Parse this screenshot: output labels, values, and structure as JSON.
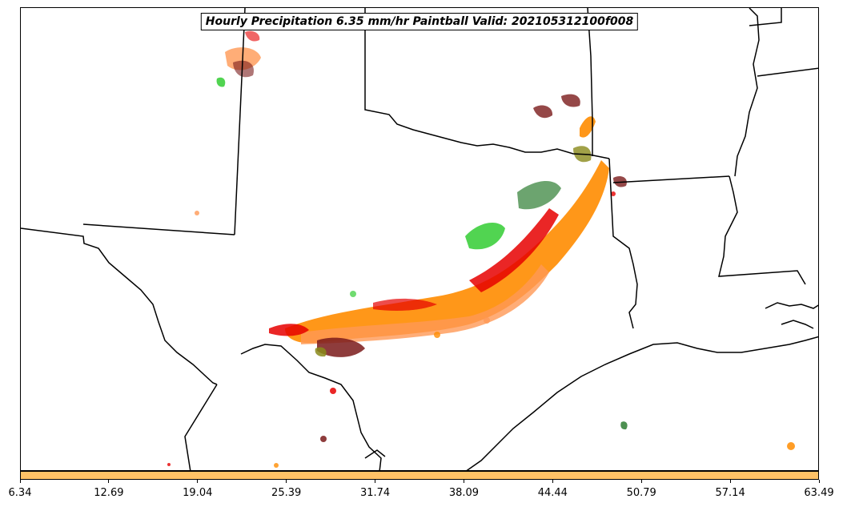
{
  "title": "Hourly Precipitation 6.35 mm/hr Paintball Valid: 202105312100f008",
  "colorbar": {
    "color": "#ffc266",
    "ticks": [
      "6.34",
      "12.69",
      "19.04",
      "25.39",
      "31.74",
      "38.09",
      "44.44",
      "50.79",
      "57.14",
      "63.49"
    ]
  },
  "colors": {
    "orange": "#ff8c00",
    "light_orange": "#ff9955",
    "red": "#e60000",
    "dark_red": "#7a1a1a",
    "green": "#33cc33",
    "dark_green": "#2e7d32",
    "olive": "#8a8a1a"
  }
}
